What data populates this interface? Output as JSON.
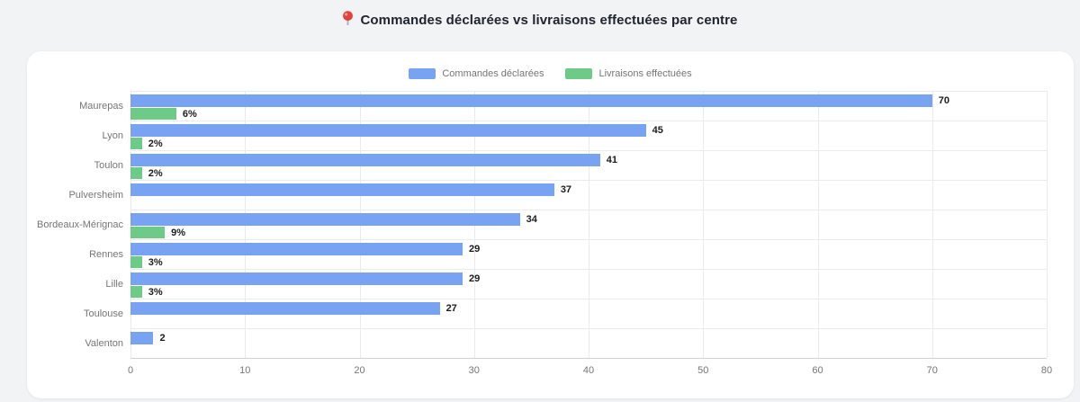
{
  "page": {
    "title_icon": "round-pushpin"
  },
  "theme": {
    "page_background": "#f1f3f4",
    "card_background": "#ffffff",
    "grid_color": "#e9ebee",
    "axis_color": "#ced1d6",
    "label_color": "#757575",
    "value_label_color": "#1b1b1b",
    "title_color": "#202430"
  },
  "chart_data": {
    "type": "bar",
    "orientation": "horizontal",
    "title": "Commandes déclarées vs livraisons effectuées par centre",
    "categories": [
      "Maurepas",
      "Lyon",
      "Toulon",
      "Pulversheim",
      "Bordeaux-Mérignac",
      "Rennes",
      "Lille",
      "Toulouse",
      "Valenton"
    ],
    "series": [
      {
        "name": "Commandes déclarées",
        "color": "#78a2f2",
        "values": [
          70,
          45,
          41,
          37,
          34,
          29,
          29,
          27,
          2
        ],
        "labels": [
          "70",
          "45",
          "41",
          "37",
          "34",
          "29",
          "29",
          "27",
          "2"
        ]
      },
      {
        "name": "Livraisons effectuées",
        "color": "#6ecb87",
        "values": [
          4,
          1,
          1,
          0,
          3,
          1,
          1,
          0,
          0
        ],
        "labels": [
          "6%",
          "2%",
          "2%",
          "",
          "9%",
          "3%",
          "3%",
          "",
          ""
        ]
      }
    ],
    "xlim": [
      0,
      80
    ],
    "xticks": [
      0,
      10,
      20,
      30,
      40,
      50,
      60,
      70,
      80
    ],
    "grid": true,
    "legend_position": "top"
  }
}
